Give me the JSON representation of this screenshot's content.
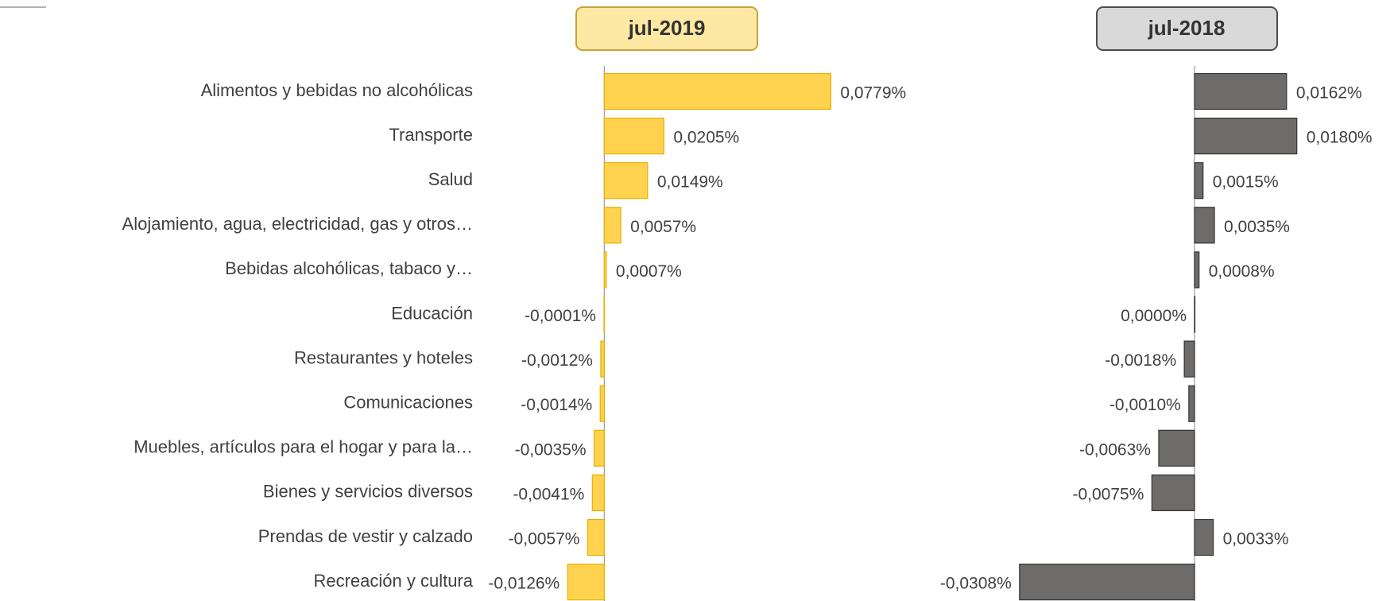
{
  "chart_data": [
    {
      "type": "bar",
      "title": "jul-2019",
      "categories": [
        "Alimentos y bebidas no alcohólicas",
        "Transporte",
        "Salud",
        "Alojamiento, agua, electricidad, gas y otros…",
        "Bebidas alcohólicas, tabaco y…",
        "Educación",
        "Restaurantes y hoteles",
        "Comunicaciones",
        "Muebles, artículos para el hogar y para la…",
        "Bienes y servicios diversos",
        "Prendas de vestir y calzado",
        "Recreación y cultura"
      ],
      "values": [
        0.0779,
        0.0205,
        0.0149,
        0.0057,
        0.0007,
        -0.0001,
        -0.0012,
        -0.0014,
        -0.0035,
        -0.0041,
        -0.0057,
        -0.0126
      ],
      "value_labels": [
        "0,0779%",
        "0,0205%",
        "0,0149%",
        "0,0057%",
        "0,0007%",
        "-0,0001%",
        "-0,0012%",
        "-0,0014%",
        "-0,0035%",
        "-0,0041%",
        "-0,0057%",
        "-0,0126%"
      ],
      "color": "#ffd24f",
      "xlim": [
        -0.04,
        0.08
      ]
    },
    {
      "type": "bar",
      "title": "jul-2018",
      "values": [
        0.0162,
        0.018,
        0.0015,
        0.0035,
        0.0008,
        0.0,
        -0.0018,
        -0.001,
        -0.0063,
        -0.0075,
        0.0033,
        -0.0308
      ],
      "value_labels": [
        "0,0162%",
        "0,0180%",
        "0,0015%",
        "0,0035%",
        "0,0008%",
        "0,0000%",
        "-0,0018%",
        "-0,0010%",
        "-0,0063%",
        "-0,0075%",
        "0,0033%",
        "-0,0308%"
      ],
      "color": "#6e6b6b",
      "xlim": [
        -0.04,
        0.02
      ]
    }
  ]
}
